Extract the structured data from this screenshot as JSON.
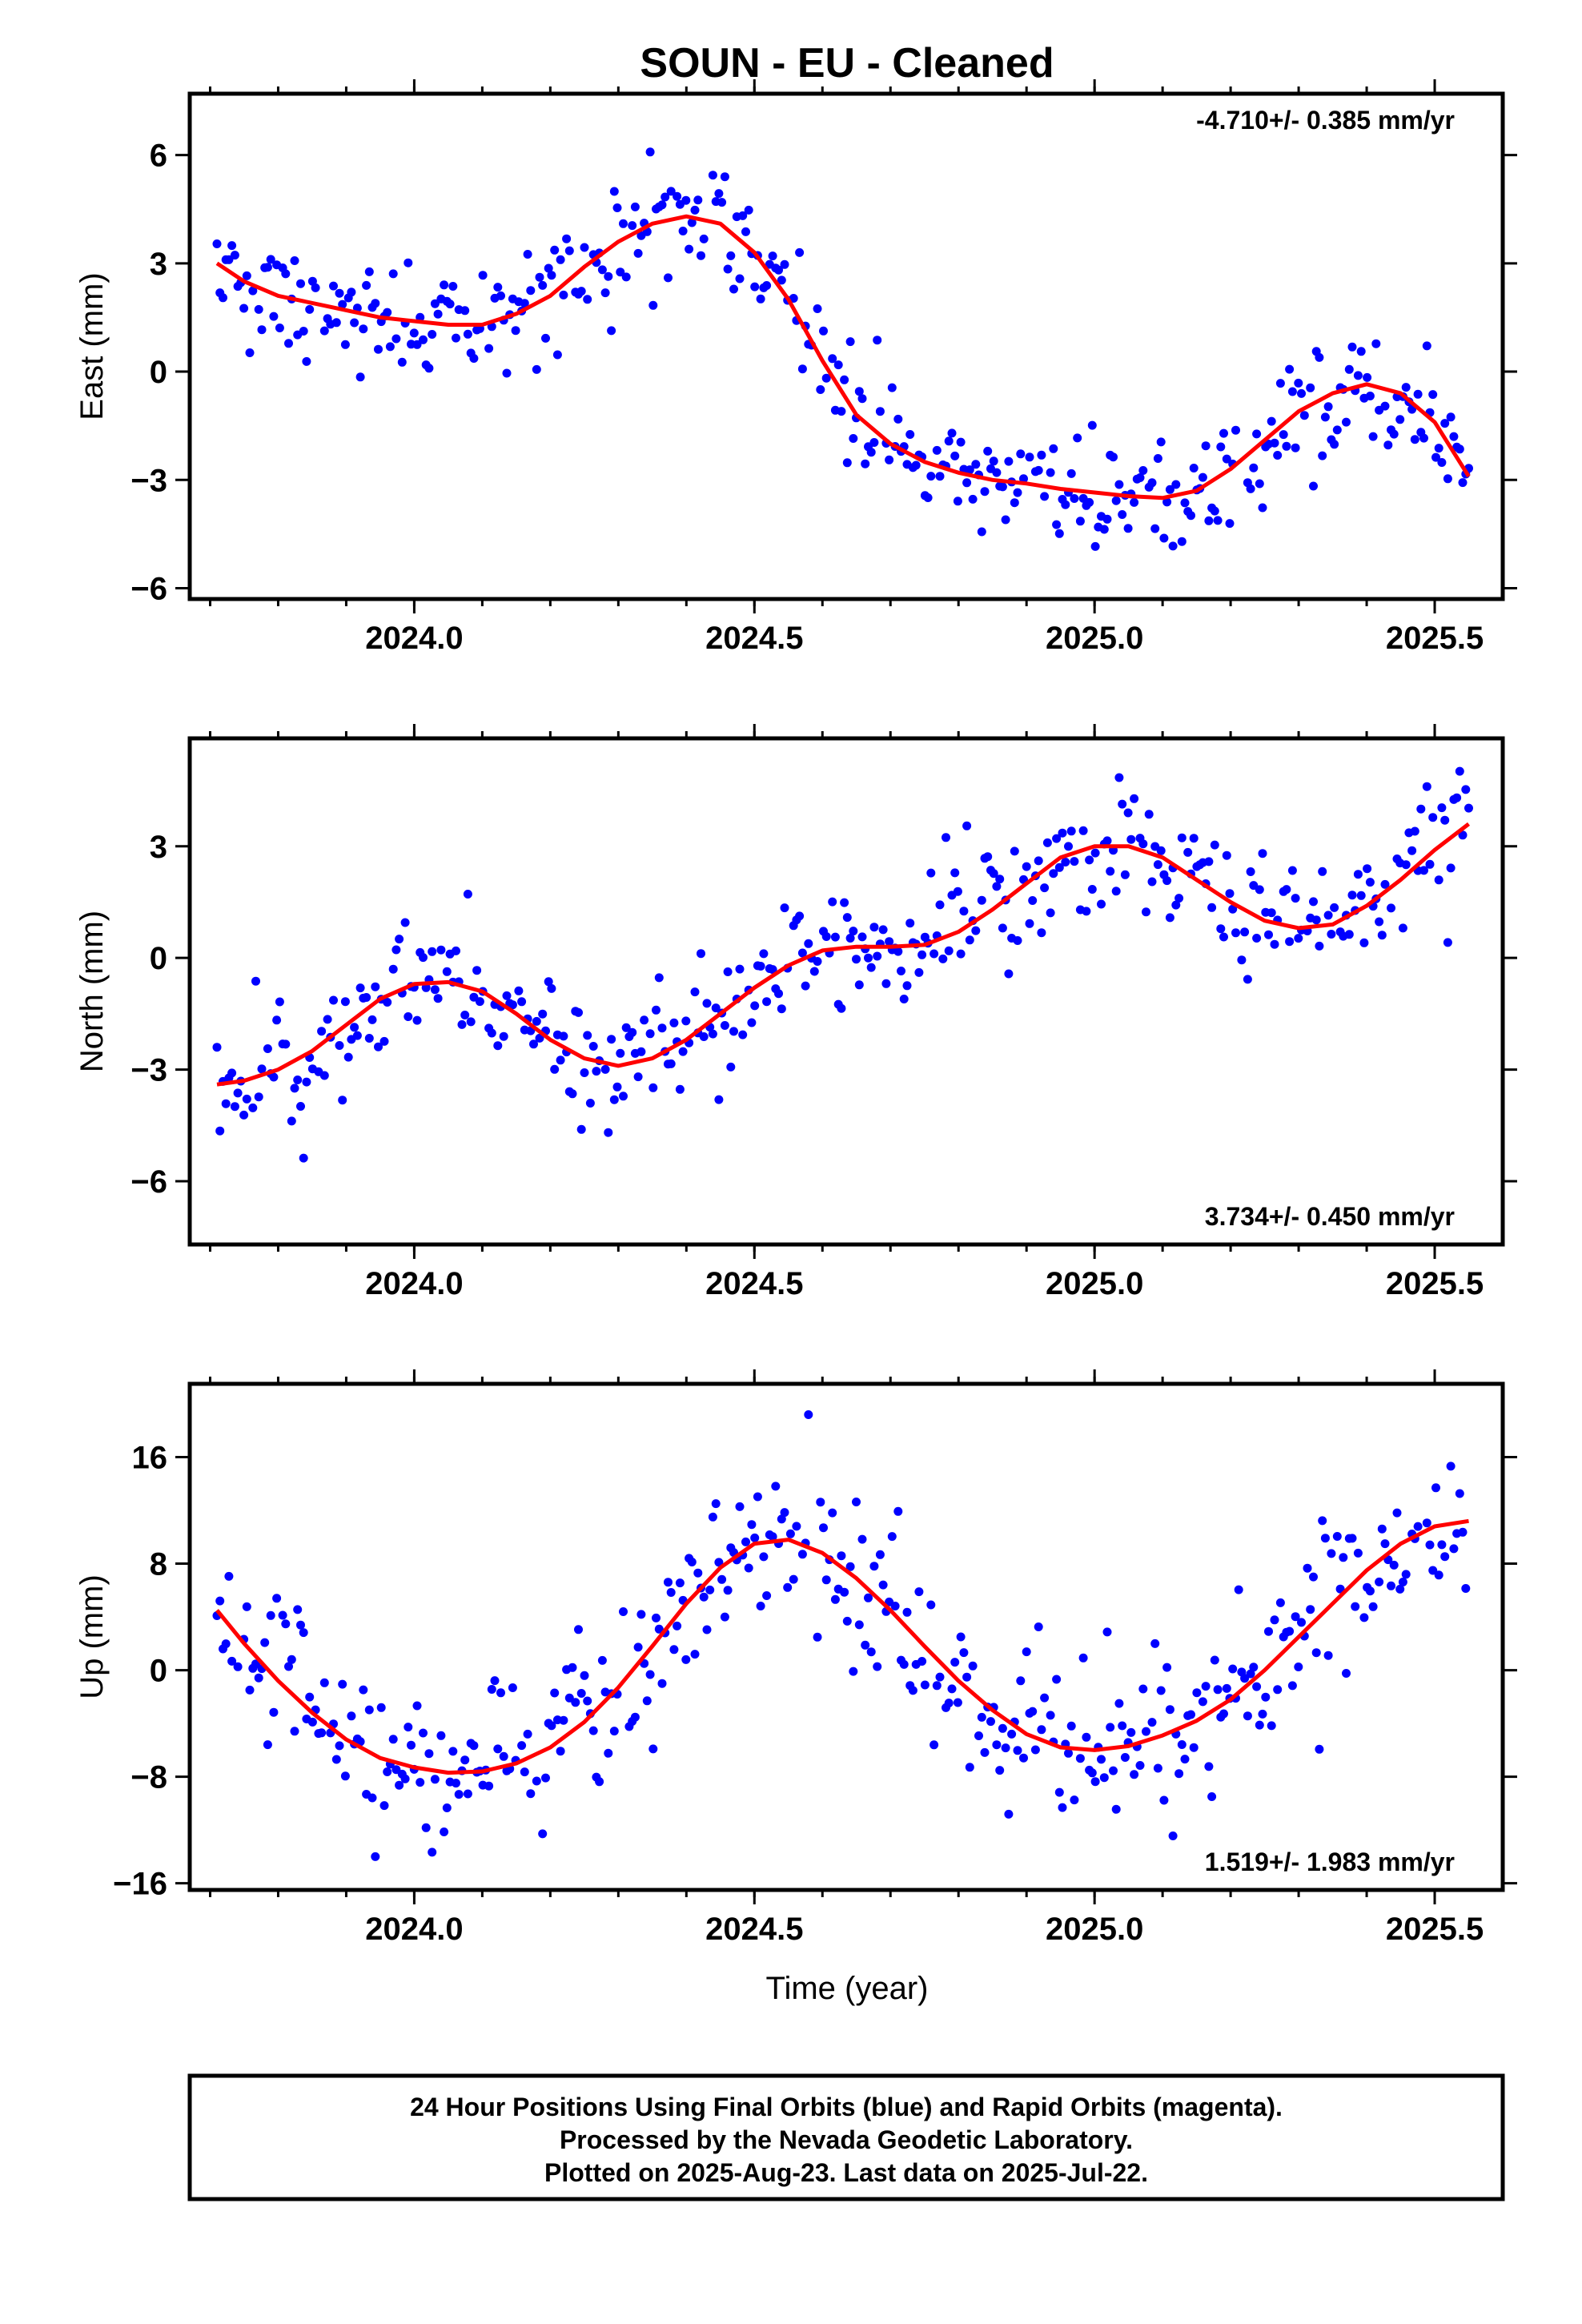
{
  "figure": {
    "title": "SOUN  - EU - Cleaned",
    "xlabel": "Time (year)"
  },
  "footer": {
    "lines": [
      "24 Hour Positions Using Final Orbits (blue) and Rapid Orbits (magenta).",
      "Processed by the Nevada Geodetic Laboratory.",
      "Plotted on 2025-Aug-23. Last data on 2025-Jul-22."
    ]
  },
  "colors": {
    "final_orbits": "#0000ff",
    "rapid_orbits": "#ff00ff",
    "model_fit": "#ff0000",
    "frame": "#000000"
  },
  "chart_data": [
    {
      "type": "scatter",
      "name": "east",
      "ylabel": "East (mm)",
      "xlim": [
        2023.67,
        2025.6
      ],
      "ylim": [
        -6.3,
        7.7
      ],
      "xticks": [
        2024.0,
        2024.5,
        2025.0,
        2025.5
      ],
      "xtick_labels": [
        "2024.0",
        "2024.5",
        "2025.0",
        "2025.5"
      ],
      "yticks": [
        -6,
        -3,
        0,
        3,
        6
      ],
      "ytick_labels": [
        "−6",
        "−3",
        "0",
        "3",
        "6"
      ],
      "rate": "-4.710+/- 0.385 mm/yr",
      "rate_position": "top-right",
      "scatter_series": "Final Orbits (blue)",
      "fit_series": "model",
      "fit": {
        "x": [
          2023.71,
          2023.75,
          2023.8,
          2023.85,
          2023.9,
          2023.95,
          2024.0,
          2024.05,
          2024.1,
          2024.15,
          2024.2,
          2024.25,
          2024.3,
          2024.35,
          2024.4,
          2024.45,
          2024.5,
          2024.55,
          2024.6,
          2024.65,
          2024.7,
          2024.75,
          2024.8,
          2024.85,
          2024.9,
          2024.95,
          2025.0,
          2025.05,
          2025.1,
          2025.15,
          2025.2,
          2025.25,
          2025.3,
          2025.35,
          2025.4,
          2025.45,
          2025.5,
          2025.55
        ],
        "y": [
          3.0,
          2.5,
          2.1,
          1.9,
          1.7,
          1.5,
          1.4,
          1.3,
          1.3,
          1.6,
          2.1,
          2.9,
          3.6,
          4.1,
          4.3,
          4.1,
          3.3,
          2.0,
          0.3,
          -1.2,
          -2.0,
          -2.5,
          -2.8,
          -3.0,
          -3.1,
          -3.25,
          -3.35,
          -3.45,
          -3.5,
          -3.3,
          -2.7,
          -1.9,
          -1.1,
          -0.6,
          -0.35,
          -0.6,
          -1.4,
          -2.9
        ]
      },
      "scatter": {
        "noise_mm": 0.8,
        "n_points": 420,
        "note": "daily positions scattered about the fit curve"
      }
    },
    {
      "type": "scatter",
      "name": "north",
      "ylabel": "North (mm)",
      "xlim": [
        2023.67,
        2025.6
      ],
      "ylim": [
        -7.7,
        5.9
      ],
      "xticks": [
        2024.0,
        2024.5,
        2025.0,
        2025.5
      ],
      "xtick_labels": [
        "2024.0",
        "2024.5",
        "2025.0",
        "2025.5"
      ],
      "yticks": [
        -6,
        -3,
        0,
        3
      ],
      "ytick_labels": [
        "−6",
        "−3",
        "0",
        "3"
      ],
      "rate": "3.734+/- 0.450 mm/yr",
      "rate_position": "bottom-right",
      "scatter_series": "Final Orbits (blue)",
      "fit_series": "model",
      "fit": {
        "x": [
          2023.71,
          2023.75,
          2023.8,
          2023.85,
          2023.9,
          2023.95,
          2024.0,
          2024.05,
          2024.1,
          2024.15,
          2024.2,
          2024.25,
          2024.3,
          2024.35,
          2024.4,
          2024.45,
          2024.5,
          2024.55,
          2024.6,
          2024.65,
          2024.7,
          2024.75,
          2024.8,
          2024.85,
          2024.9,
          2024.95,
          2025.0,
          2025.05,
          2025.1,
          2025.15,
          2025.2,
          2025.25,
          2025.3,
          2025.35,
          2025.4,
          2025.45,
          2025.5,
          2025.55
        ],
        "y": [
          -3.4,
          -3.3,
          -3.0,
          -2.5,
          -1.8,
          -1.1,
          -0.7,
          -0.65,
          -0.9,
          -1.5,
          -2.2,
          -2.7,
          -2.9,
          -2.7,
          -2.2,
          -1.5,
          -0.8,
          -0.2,
          0.2,
          0.3,
          0.3,
          0.35,
          0.7,
          1.3,
          2.0,
          2.7,
          3.0,
          3.0,
          2.7,
          2.1,
          1.5,
          1.0,
          0.8,
          0.9,
          1.4,
          2.1,
          2.9,
          3.6
        ]
      },
      "scatter": {
        "noise_mm": 0.85,
        "n_points": 420,
        "note": "daily positions scattered about the fit curve"
      }
    },
    {
      "type": "scatter",
      "name": "up",
      "ylabel": "Up (mm)",
      "xlim": [
        2023.67,
        2025.6
      ],
      "ylim": [
        -16.5,
        21.5
      ],
      "xticks": [
        2024.0,
        2024.5,
        2025.0,
        2025.5
      ],
      "xtick_labels": [
        "2024.0",
        "2024.5",
        "2025.0",
        "2025.5"
      ],
      "yticks": [
        -16,
        -8,
        0,
        8,
        16
      ],
      "ytick_labels": [
        "−16",
        "−8",
        "0",
        "8",
        "16"
      ],
      "rate": "1.519+/- 1.983 mm/yr",
      "rate_position": "bottom-right",
      "scatter_series": "Final Orbits (blue)",
      "fit_series": "model",
      "fit": {
        "x": [
          2023.71,
          2023.75,
          2023.8,
          2023.85,
          2023.9,
          2023.95,
          2024.0,
          2024.05,
          2024.1,
          2024.15,
          2024.2,
          2024.25,
          2024.3,
          2024.35,
          2024.4,
          2024.45,
          2024.5,
          2024.55,
          2024.6,
          2024.65,
          2024.7,
          2024.75,
          2024.8,
          2024.85,
          2024.9,
          2024.95,
          2025.0,
          2025.05,
          2025.1,
          2025.15,
          2025.2,
          2025.25,
          2025.3,
          2025.35,
          2025.4,
          2025.45,
          2025.5,
          2025.55
        ],
        "y": [
          4.5,
          2.0,
          -0.8,
          -3.2,
          -5.2,
          -6.6,
          -7.3,
          -7.7,
          -7.6,
          -7.0,
          -5.8,
          -3.9,
          -1.3,
          1.8,
          5.0,
          7.7,
          9.5,
          9.8,
          8.8,
          6.9,
          4.5,
          1.8,
          -0.8,
          -3.0,
          -4.8,
          -5.8,
          -6.0,
          -5.7,
          -4.9,
          -3.8,
          -2.2,
          0.0,
          2.5,
          5.0,
          7.5,
          9.5,
          10.8,
          11.2
        ]
      },
      "scatter": {
        "noise_mm": 3.3,
        "n_points": 420,
        "note": "daily positions scattered about the fit curve"
      }
    }
  ]
}
